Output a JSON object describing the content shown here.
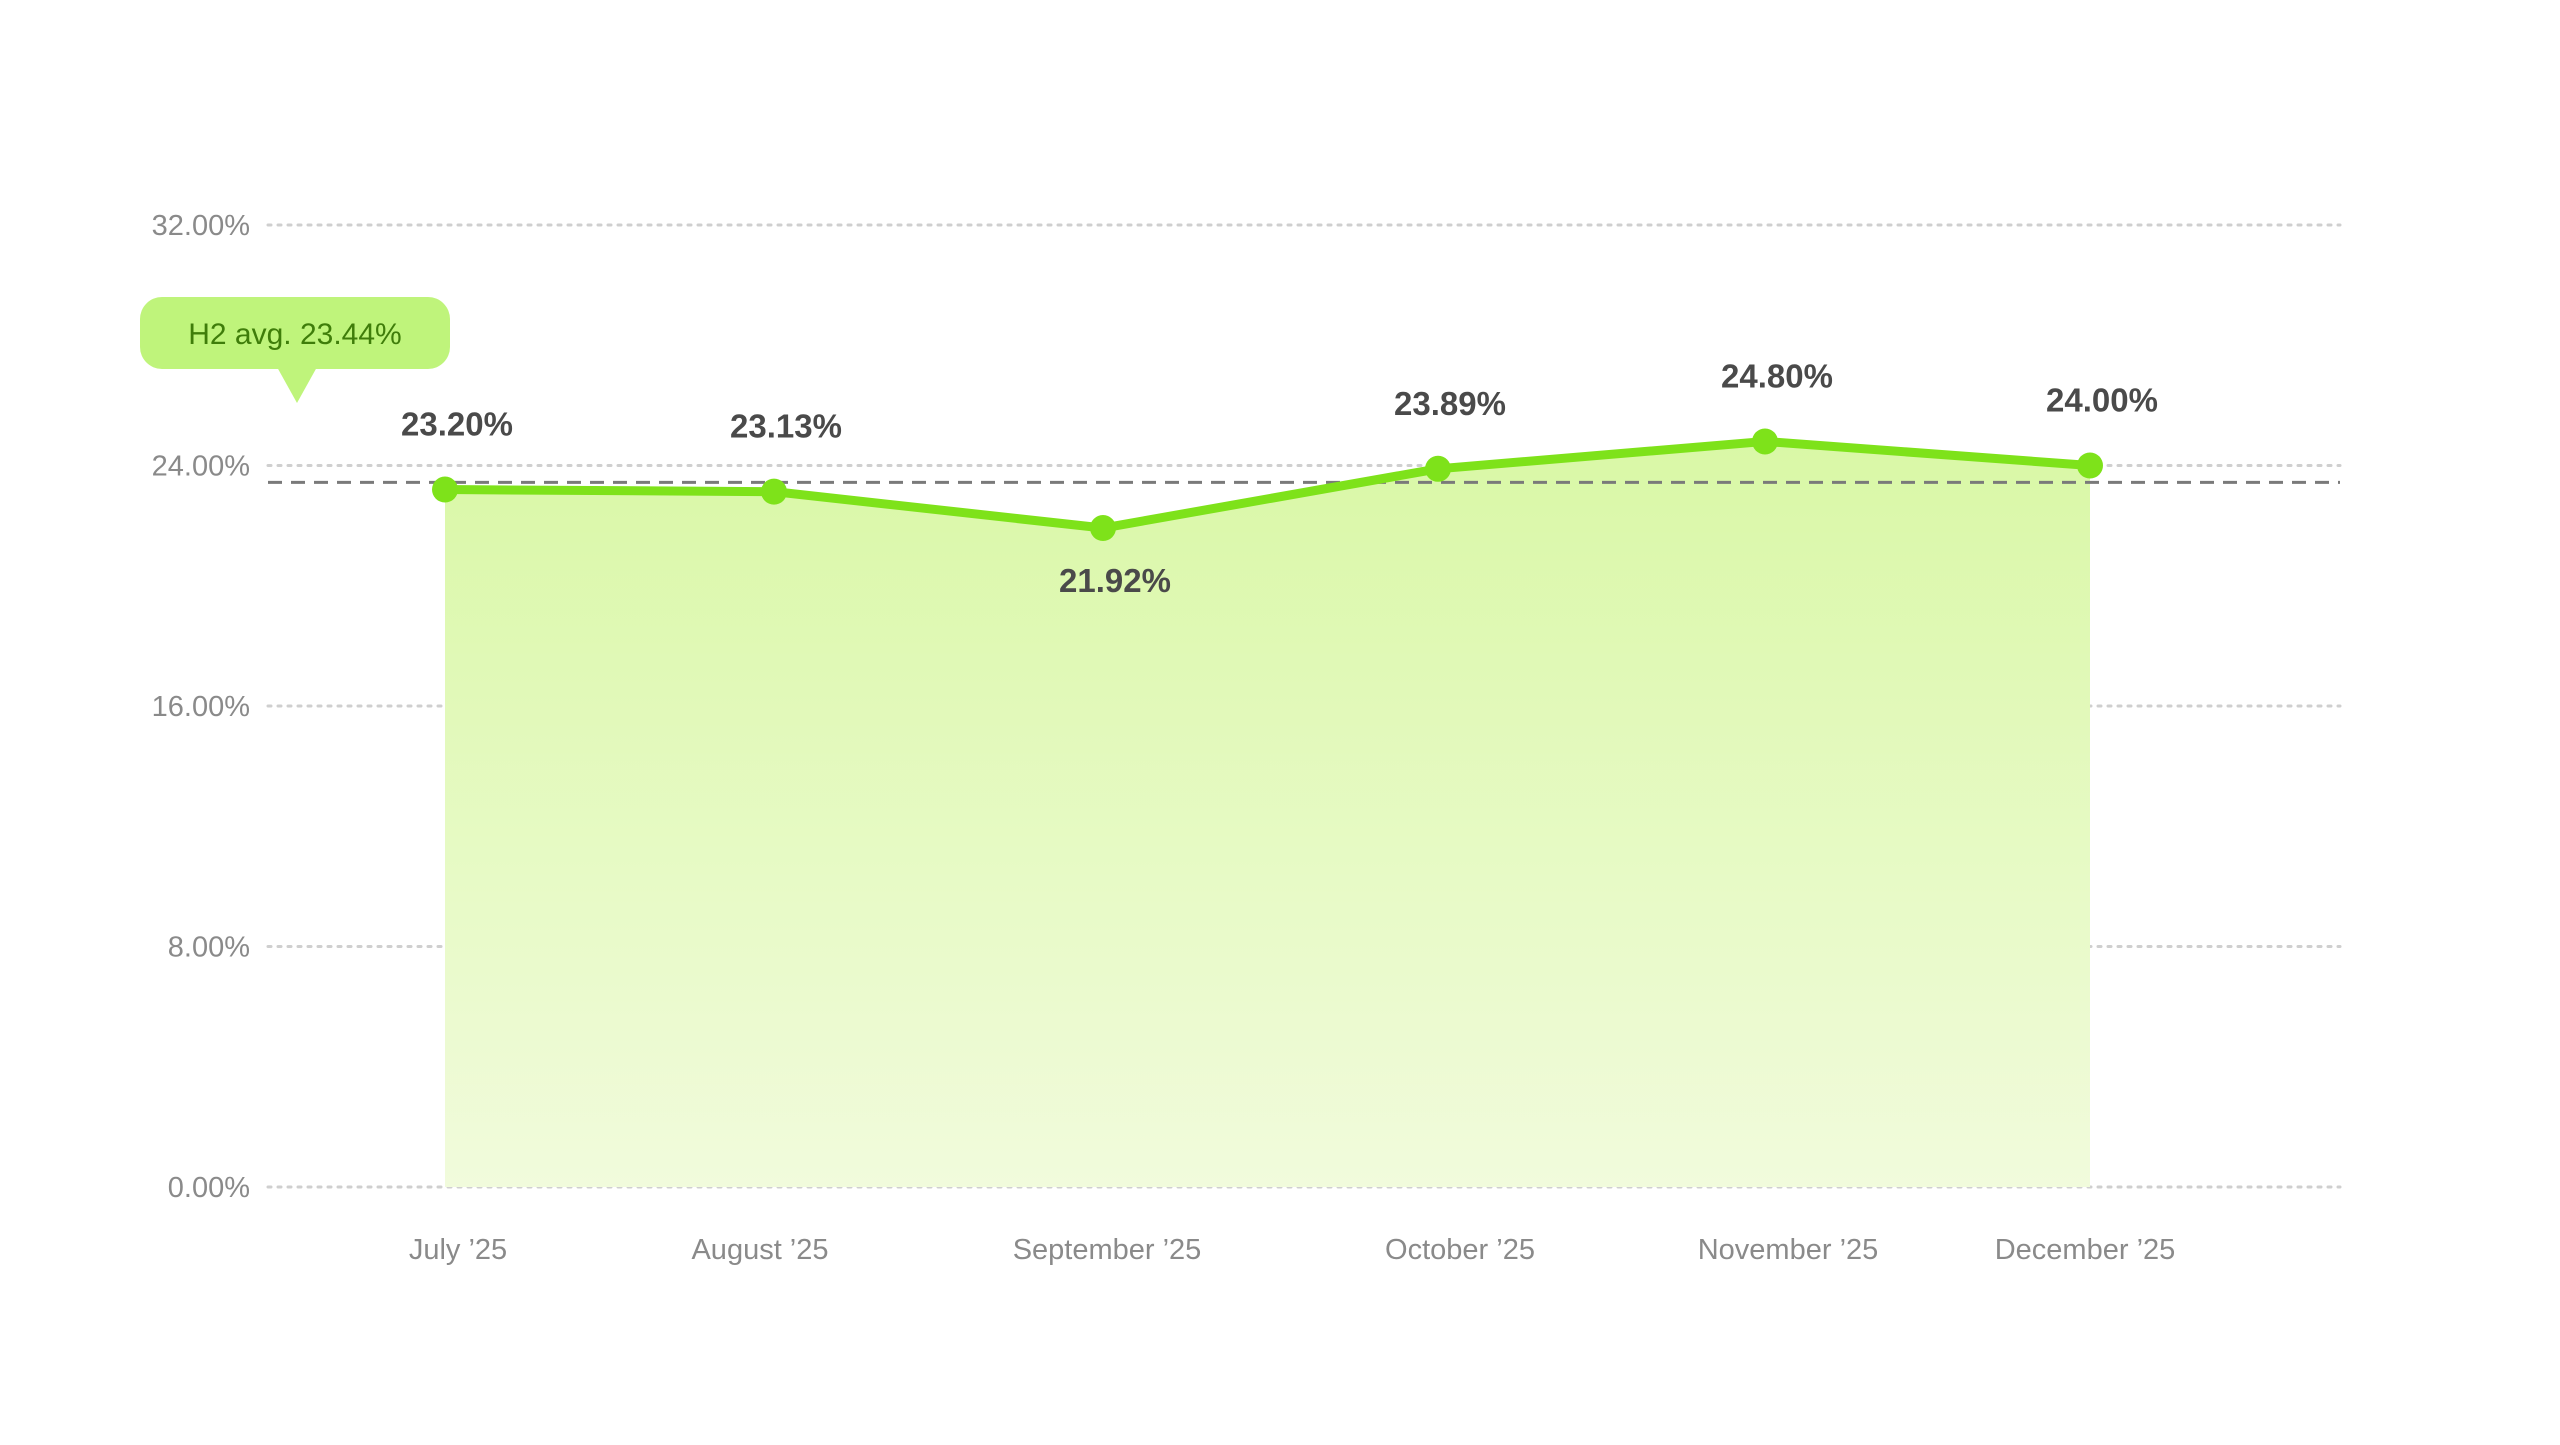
{
  "chart_data": {
    "type": "area",
    "categories": [
      "July ’25",
      "August ’25",
      "September ’25",
      "October ’25",
      "November ’25",
      "December ’25"
    ],
    "series": [
      {
        "values": [
          23.2,
          23.13,
          21.92,
          23.89,
          24.8,
          24.0
        ],
        "labels": [
          "23.20%",
          "23.13%",
          "21.92%",
          "23.89%",
          "24.80%",
          "24.00%"
        ]
      }
    ],
    "y_ticks": [
      "0.00%",
      "8.00%",
      "16.00%",
      "24.00%",
      "32.00%"
    ],
    "y_tick_values": [
      0,
      8,
      16,
      24,
      32
    ],
    "ylim": [
      0,
      32
    ],
    "grid": true,
    "average": {
      "value": 23.44,
      "label": "H2 avg. 23.44%"
    },
    "colors": {
      "line": "#7ee21a",
      "area_top": "#d9f8a6",
      "area_bottom": "#f1fbdc",
      "average_line": "#7a7a7a",
      "gridline": "#cfcfcf",
      "callout_bg": "#bff47b",
      "callout_text": "#3f7d0a"
    }
  }
}
